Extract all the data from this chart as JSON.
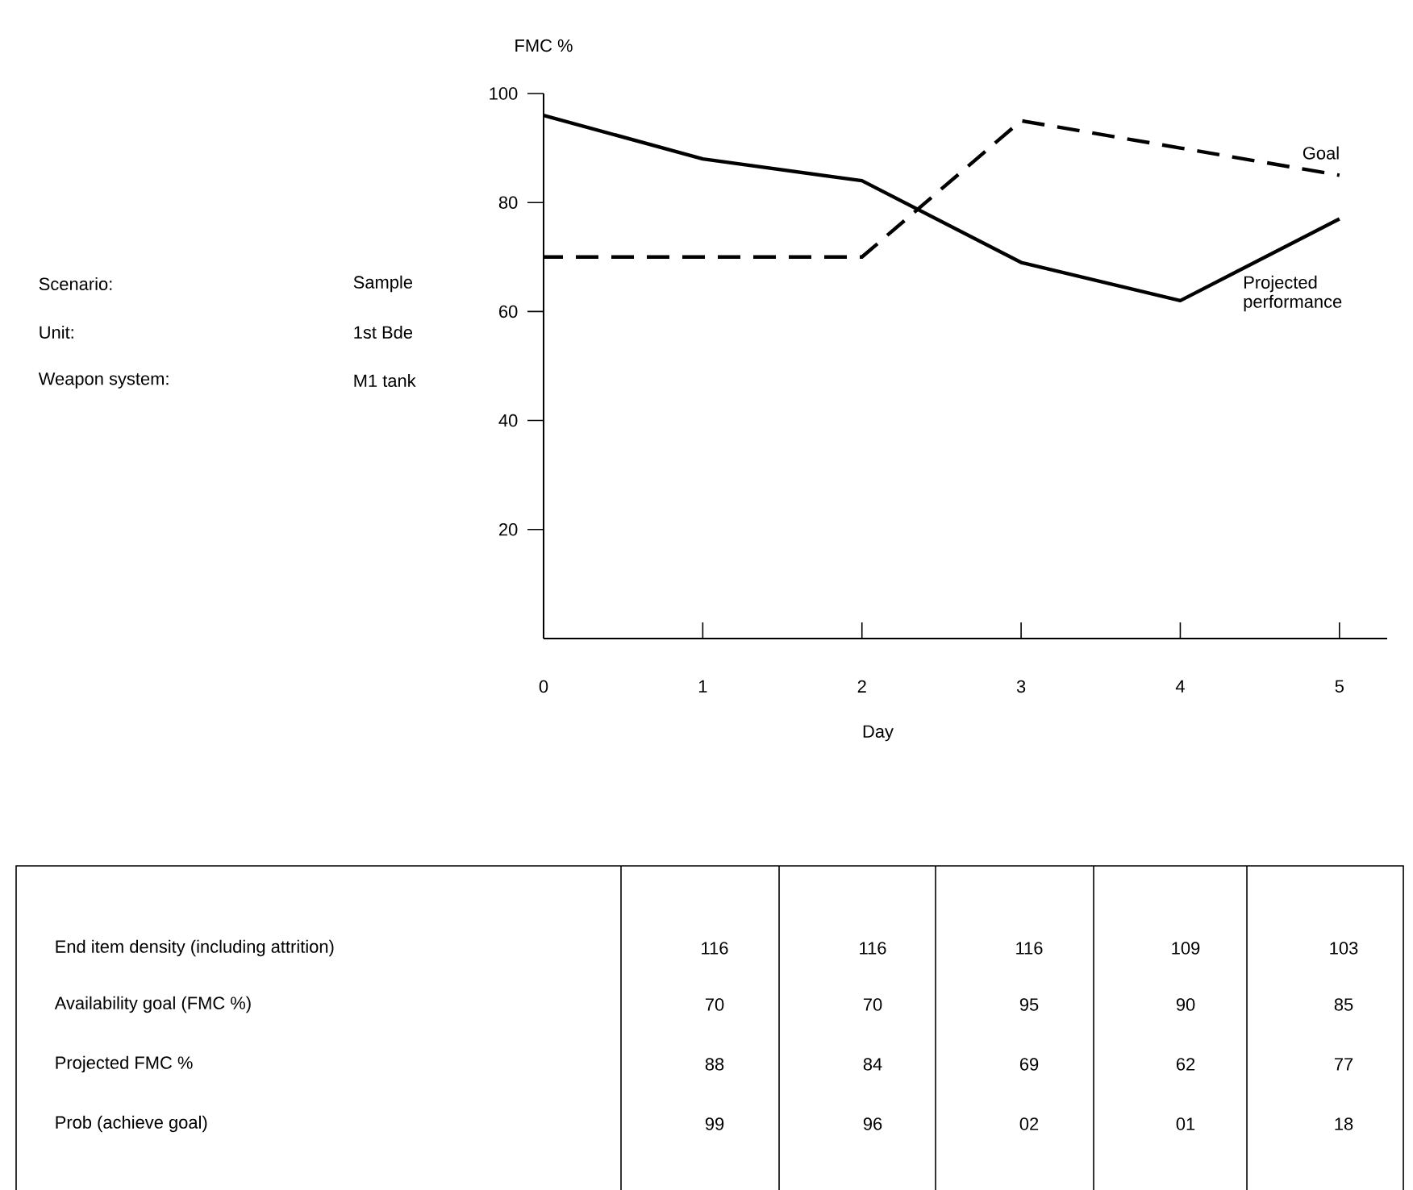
{
  "chart_data": {
    "type": "line",
    "xlabel": "Day",
    "ylabel": "FMC %",
    "x": [
      0,
      1,
      2,
      3,
      4,
      5
    ],
    "xlim": [
      0,
      5.3
    ],
    "xticks": [
      0,
      1,
      2,
      3,
      4,
      5
    ],
    "ylim": [
      0,
      100
    ],
    "yticks": [
      20,
      40,
      60,
      80,
      100
    ],
    "series": [
      {
        "name": "Goal",
        "color": "#000000",
        "line_style": "dashed",
        "values": [
          70,
          70,
          70,
          95,
          90,
          85
        ]
      },
      {
        "name": "Projected performance",
        "color": "#000000",
        "line_style": "solid",
        "values": [
          96,
          88,
          84,
          69,
          62,
          77
        ]
      }
    ],
    "marker": "none",
    "legend": false,
    "annotations": [
      "Scenario:",
      "Sample",
      "Unit:",
      "1st Bde",
      "Weapon system:",
      "M1 tank",
      "End item density (including attrition)",
      "116",
      "116",
      "116",
      "109",
      "103",
      "Availability goal (FMC %)",
      "70",
      "70",
      "95",
      "90",
      "85",
      "Projected FMC %",
      "88",
      "84",
      "69",
      "62",
      "77",
      "Prob (achieve goal)",
      "99",
      "96",
      "02",
      "01",
      "18"
    ]
  }
}
